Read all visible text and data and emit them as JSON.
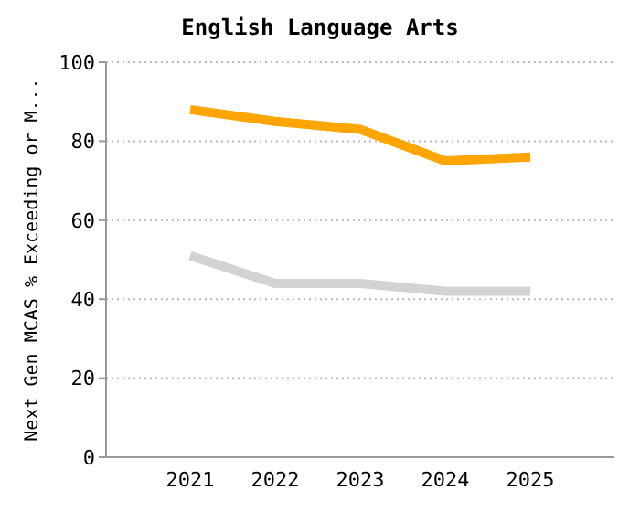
{
  "chart_data": {
    "type": "line",
    "title": "English Language Arts",
    "ylabel": "Next Gen MCAS % Exceeding or M...",
    "categories": [
      "2021",
      "2022",
      "2023",
      "2024",
      "2025"
    ],
    "series": [
      {
        "color": "#ffa500",
        "values": [
          88,
          85,
          83,
          75,
          76
        ]
      },
      {
        "color": "#d3d3d3",
        "values": [
          51,
          44,
          44,
          42,
          42
        ]
      }
    ],
    "ylim": [
      0,
      100
    ],
    "yticks": [
      0,
      20,
      40,
      60,
      80,
      100
    ],
    "grid": "y",
    "legend": false,
    "marker": "none",
    "line_style": "solid"
  }
}
